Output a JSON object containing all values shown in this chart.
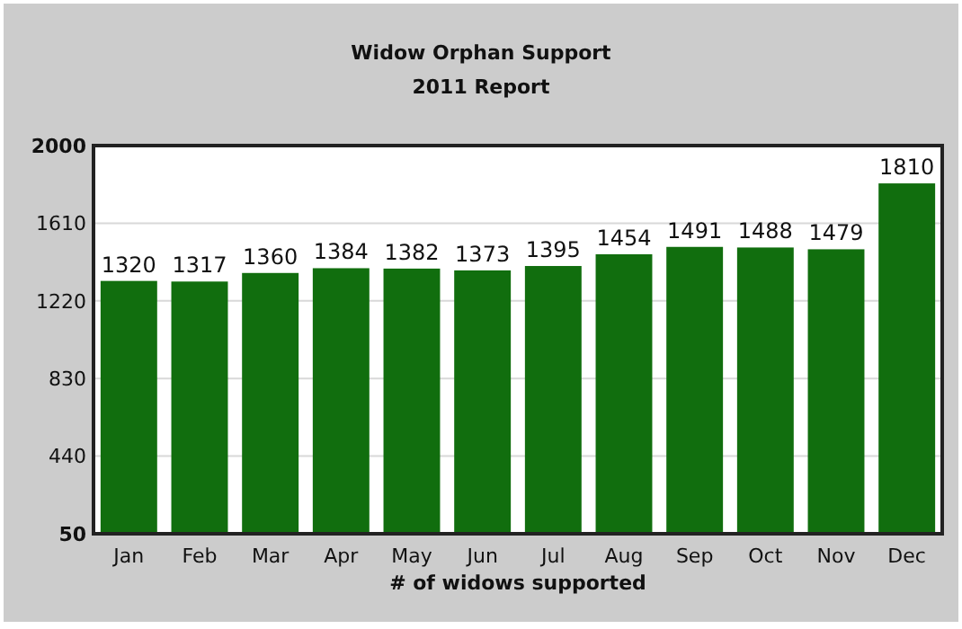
{
  "chart_data": {
    "type": "bar",
    "title": "Widow Orphan Support",
    "subtitle": "2011 Report",
    "xlabel": "# of widows supported",
    "categories": [
      "Jan",
      "Feb",
      "Mar",
      "Apr",
      "May",
      "Jun",
      "Jul",
      "Aug",
      "Sep",
      "Oct",
      "Nov",
      "Dec"
    ],
    "values": [
      1320,
      1317,
      1360,
      1384,
      1382,
      1373,
      1395,
      1454,
      1491,
      1488,
      1479,
      1810
    ],
    "color": "#116e0e",
    "ylim": [
      50,
      2000
    ],
    "yticks": [
      50,
      440,
      830,
      1220,
      1610,
      2000
    ],
    "grid": "y",
    "data_labels": true
  }
}
